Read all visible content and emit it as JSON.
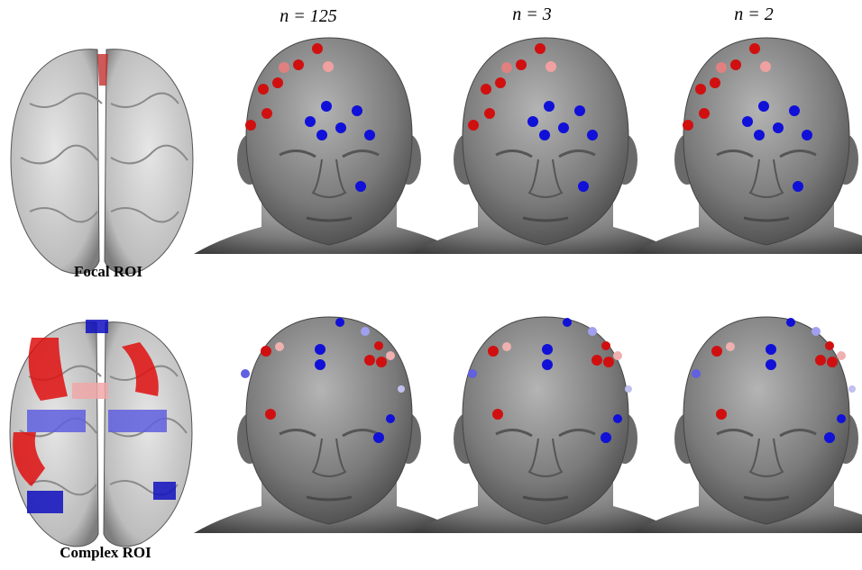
{
  "columns": [
    "n = 125",
    "n = 3",
    "n = 2"
  ],
  "rows": [
    "Focal ROI",
    "Complex ROI"
  ]
}
